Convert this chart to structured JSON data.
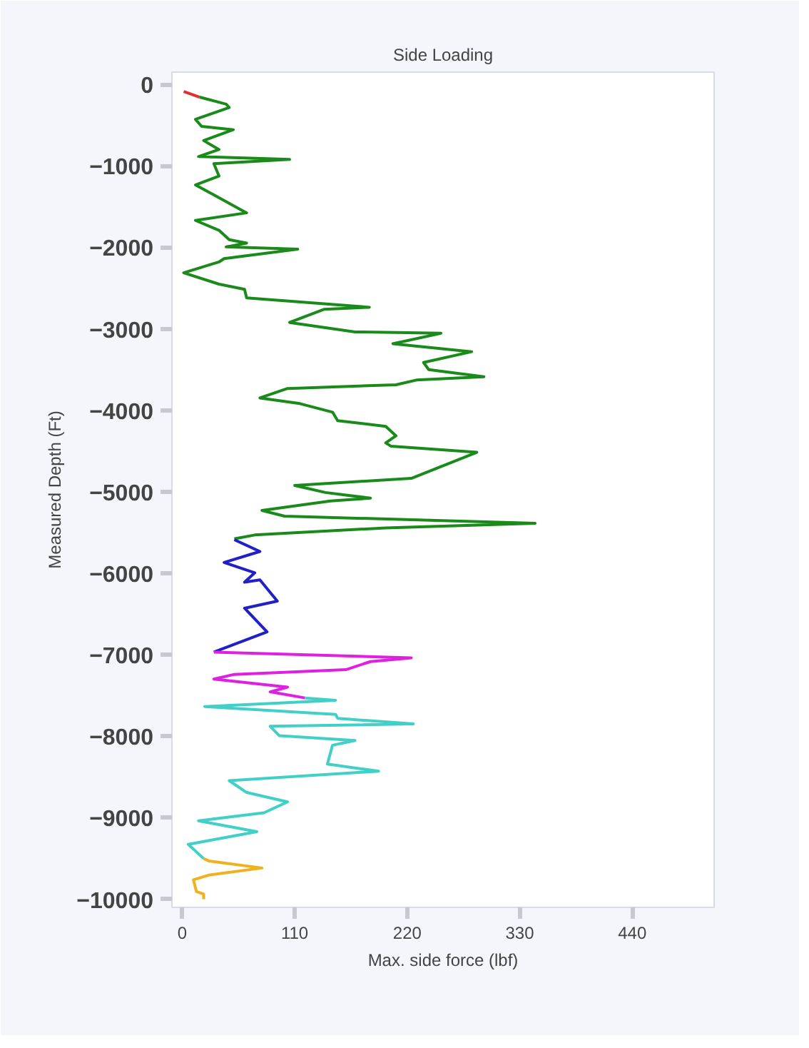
{
  "chart_data": {
    "type": "line",
    "title": "Side Loading",
    "xlabel": "Max. side force (lbf)",
    "ylabel": "Measured Depth (Ft)",
    "xlim": [
      -10,
      520
    ],
    "ylim": [
      -10100,
      150
    ],
    "xticks": [
      0,
      110,
      220,
      330,
      440
    ],
    "yticks": [
      0,
      -1000,
      -2000,
      -3000,
      -4000,
      -5000,
      -6000,
      -7000,
      -8000,
      -9000,
      -10000
    ],
    "grid": false,
    "series": [
      {
        "color": "#e03030",
        "x": [
          1.5,
          17
        ],
        "values": [
          -87,
          -157
        ]
      },
      {
        "color": "#1a8a1a",
        "x": [
          17,
          43,
          46,
          13,
          19,
          50,
          21,
          36,
          16,
          105,
          31,
          36,
          13,
          31,
          63,
          13,
          36,
          46,
          63,
          43,
          113,
          41,
          36,
          1.5,
          36,
          61,
          63,
          183,
          139,
          105,
          169,
          253,
          206,
          283,
          236,
          241,
          295,
          229,
          209,
          103,
          76,
          115,
          147,
          152,
          199,
          209,
          199,
          204,
          288,
          224,
          110,
          140,
          184,
          145,
          78,
          100,
          345,
          199,
          71,
          51
        ],
        "values": [
          -157,
          -243,
          -284,
          -429,
          -516,
          -557,
          -690,
          -800,
          -887,
          -922,
          -974,
          -1125,
          -1235,
          -1357,
          -1577,
          -1670,
          -1791,
          -1907,
          -1948,
          -1995,
          -2023,
          -2139,
          -2180,
          -2313,
          -2452,
          -2516,
          -2620,
          -2736,
          -2760,
          -2922,
          -3038,
          -3055,
          -3183,
          -3281,
          -3414,
          -3501,
          -3588,
          -3629,
          -3687,
          -3733,
          -3849,
          -3918,
          -4023,
          -4127,
          -4197,
          -4313,
          -4400,
          -4440,
          -4516,
          -4835,
          -4922,
          -5009,
          -5078,
          -5113,
          -5229,
          -5299,
          -5386,
          -5443,
          -5530,
          -5577
        ]
      },
      {
        "color": "#2020c8",
        "x": [
          51,
          76,
          41,
          71,
          61,
          76,
          93,
          61,
          83,
          31
        ],
        "values": [
          -5588,
          -5733,
          -5867,
          -5994,
          -6110,
          -6081,
          -6342,
          -6429,
          -6719,
          -6968
        ]
      },
      {
        "color": "#e020e0",
        "x": [
          31,
          224,
          184,
          160,
          51,
          31,
          103,
          86,
          120
        ],
        "values": [
          -6968,
          -7038,
          -7084,
          -7183,
          -7241,
          -7299,
          -7397,
          -7455,
          -7530
        ]
      },
      {
        "color": "#40d0c8",
        "x": [
          120,
          150,
          22,
          150,
          152,
          226,
          86,
          95,
          169,
          147,
          142,
          192,
          46,
          63,
          103,
          80,
          16,
          73,
          6,
          21
        ],
        "values": [
          -7530,
          -7559,
          -7635,
          -7733,
          -7780,
          -7849,
          -7878,
          -7994,
          -8052,
          -8110,
          -8342,
          -8429,
          -8545,
          -8690,
          -8806,
          -8939,
          -9038,
          -9171,
          -9327,
          -9501
        ]
      },
      {
        "color": "#f0b020",
        "x": [
          21,
          26,
          78,
          26,
          11,
          14,
          21,
          21
        ],
        "values": [
          -9501,
          -9530,
          -9617,
          -9704,
          -9762,
          -9907,
          -9936,
          -10000
        ]
      }
    ]
  }
}
